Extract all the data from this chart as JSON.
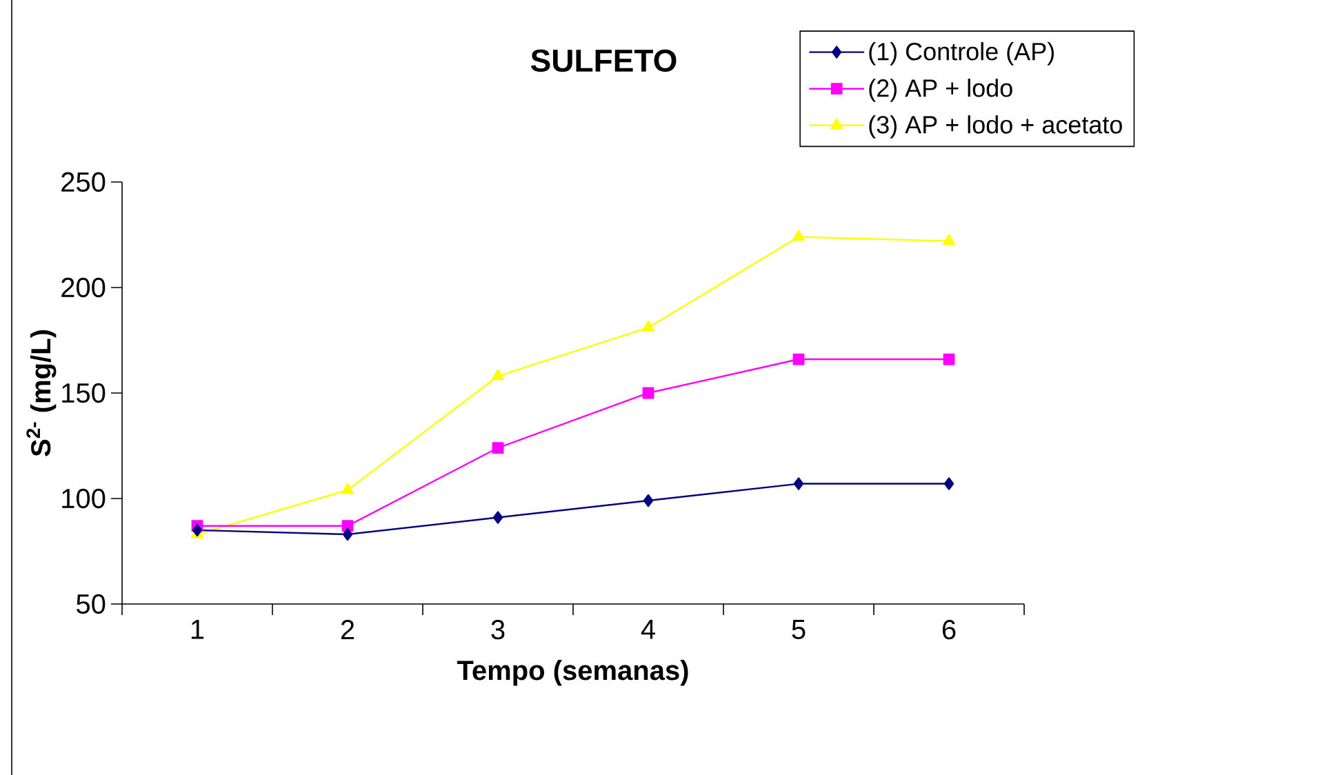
{
  "chart_data": {
    "type": "line",
    "title": "SULFETO",
    "xlabel": "Tempo (semanas)",
    "ylabel": "S$^{2-}$ (mg/L)",
    "categories": [
      "1",
      "2",
      "3",
      "4",
      "5",
      "6"
    ],
    "series": [
      {
        "name": "(1) Controle (AP)",
        "color": "#000080",
        "marker": "diamond",
        "values": [
          85,
          83,
          91,
          99,
          107,
          107
        ]
      },
      {
        "name": "(2) AP + lodo",
        "color": "#ff00ff",
        "marker": "square",
        "values": [
          87,
          87,
          124,
          150,
          166,
          166
        ]
      },
      {
        "name": "(3) AP + lodo + acetato",
        "color": "#ffff00",
        "marker": "triangle",
        "values": [
          83,
          104,
          158,
          181,
          224,
          222
        ]
      }
    ],
    "ylim": [
      50,
      250
    ],
    "yticks": [
      50,
      100,
      150,
      200,
      250
    ],
    "grid": false,
    "legend": "top right",
    "line_style": "solid"
  }
}
